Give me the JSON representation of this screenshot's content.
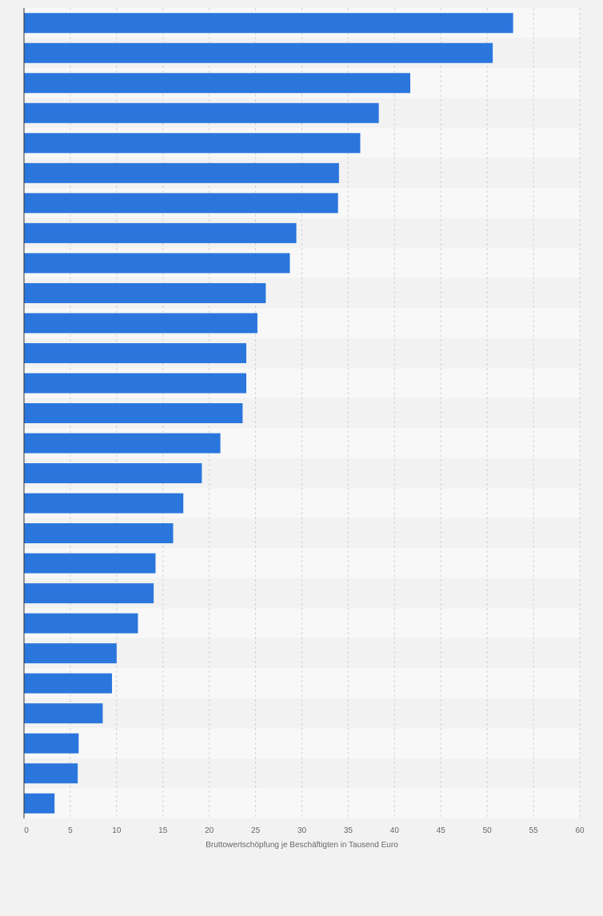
{
  "chart_data": {
    "type": "bar",
    "orientation": "horizontal",
    "xlabel": "Bruttowertschöpfung je Beschäftigten in Tausend Euro",
    "xlim": [
      0,
      60
    ],
    "xticks": [
      0,
      5,
      10,
      15,
      20,
      25,
      30,
      35,
      40,
      45,
      50,
      55,
      60
    ],
    "grid": true,
    "legend": "none",
    "values": [
      52.8,
      50.6,
      41.7,
      38.3,
      36.3,
      34.0,
      33.9,
      29.4,
      28.7,
      26.1,
      25.2,
      24.0,
      24.0,
      23.6,
      21.2,
      19.2,
      17.2,
      16.1,
      14.2,
      14.0,
      12.3,
      10.0,
      9.5,
      8.5,
      5.9,
      5.8,
      3.3
    ],
    "colors": {
      "bar": "#2a76dd",
      "band_light": "#f8f8f8",
      "band_dark": "#f2f2f2",
      "grid": "#d2d2d2",
      "axis": "#333333",
      "tick_text": "#666666"
    }
  }
}
